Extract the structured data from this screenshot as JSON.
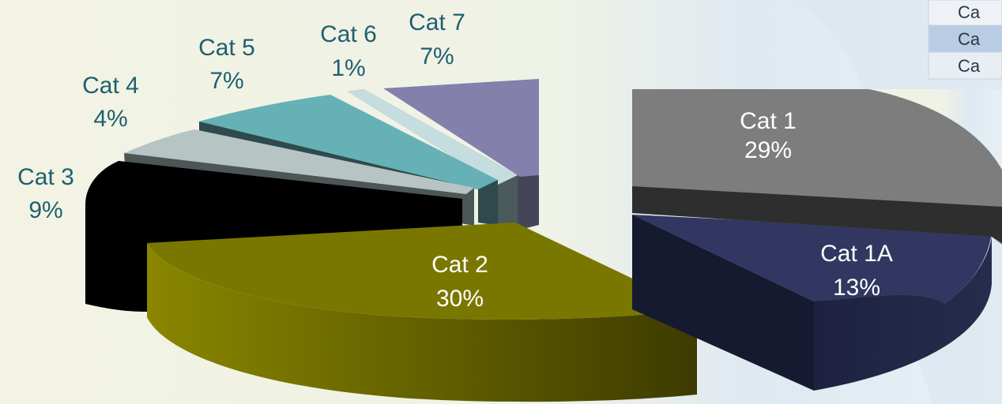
{
  "chart_data": {
    "type": "pie",
    "variant": "exploded-3d",
    "legend_placement": "top-right (cropped)",
    "legend_visible_text": [
      "Ca",
      "Ca",
      "Ca"
    ],
    "slices": [
      {
        "label": "Cat 1",
        "value_label": "29%",
        "value": 29,
        "color": "#7d7d7d",
        "label_color": "#ffffff"
      },
      {
        "label": "Cat 1A",
        "value_label": "13%",
        "value": 13,
        "color": "#303761",
        "label_color": "#ffffff"
      },
      {
        "label": "Cat 2",
        "value_label": "30%",
        "value": 30,
        "color": "#7a7700",
        "label_color": "#ffffff"
      },
      {
        "label": "Cat 3",
        "value_label": "9%",
        "value": 9,
        "color": "#000000",
        "label_color": "#1f5f6e"
      },
      {
        "label": "Cat 4",
        "value_label": "4%",
        "value": 4,
        "color": "#b7c4c4",
        "label_color": "#1f5f6e"
      },
      {
        "label": "Cat 5",
        "value_label": "7%",
        "value": 7,
        "color": "#66b1b6",
        "label_color": "#1f5f6e"
      },
      {
        "label": "Cat 6",
        "value_label": "1%",
        "value": 1,
        "color": "#c6dde0",
        "label_color": "#1f5f6e"
      },
      {
        "label": "Cat 7",
        "value_label": "7%",
        "value": 7,
        "color": "#8380ab",
        "label_color": "#1f5f6e"
      }
    ]
  }
}
